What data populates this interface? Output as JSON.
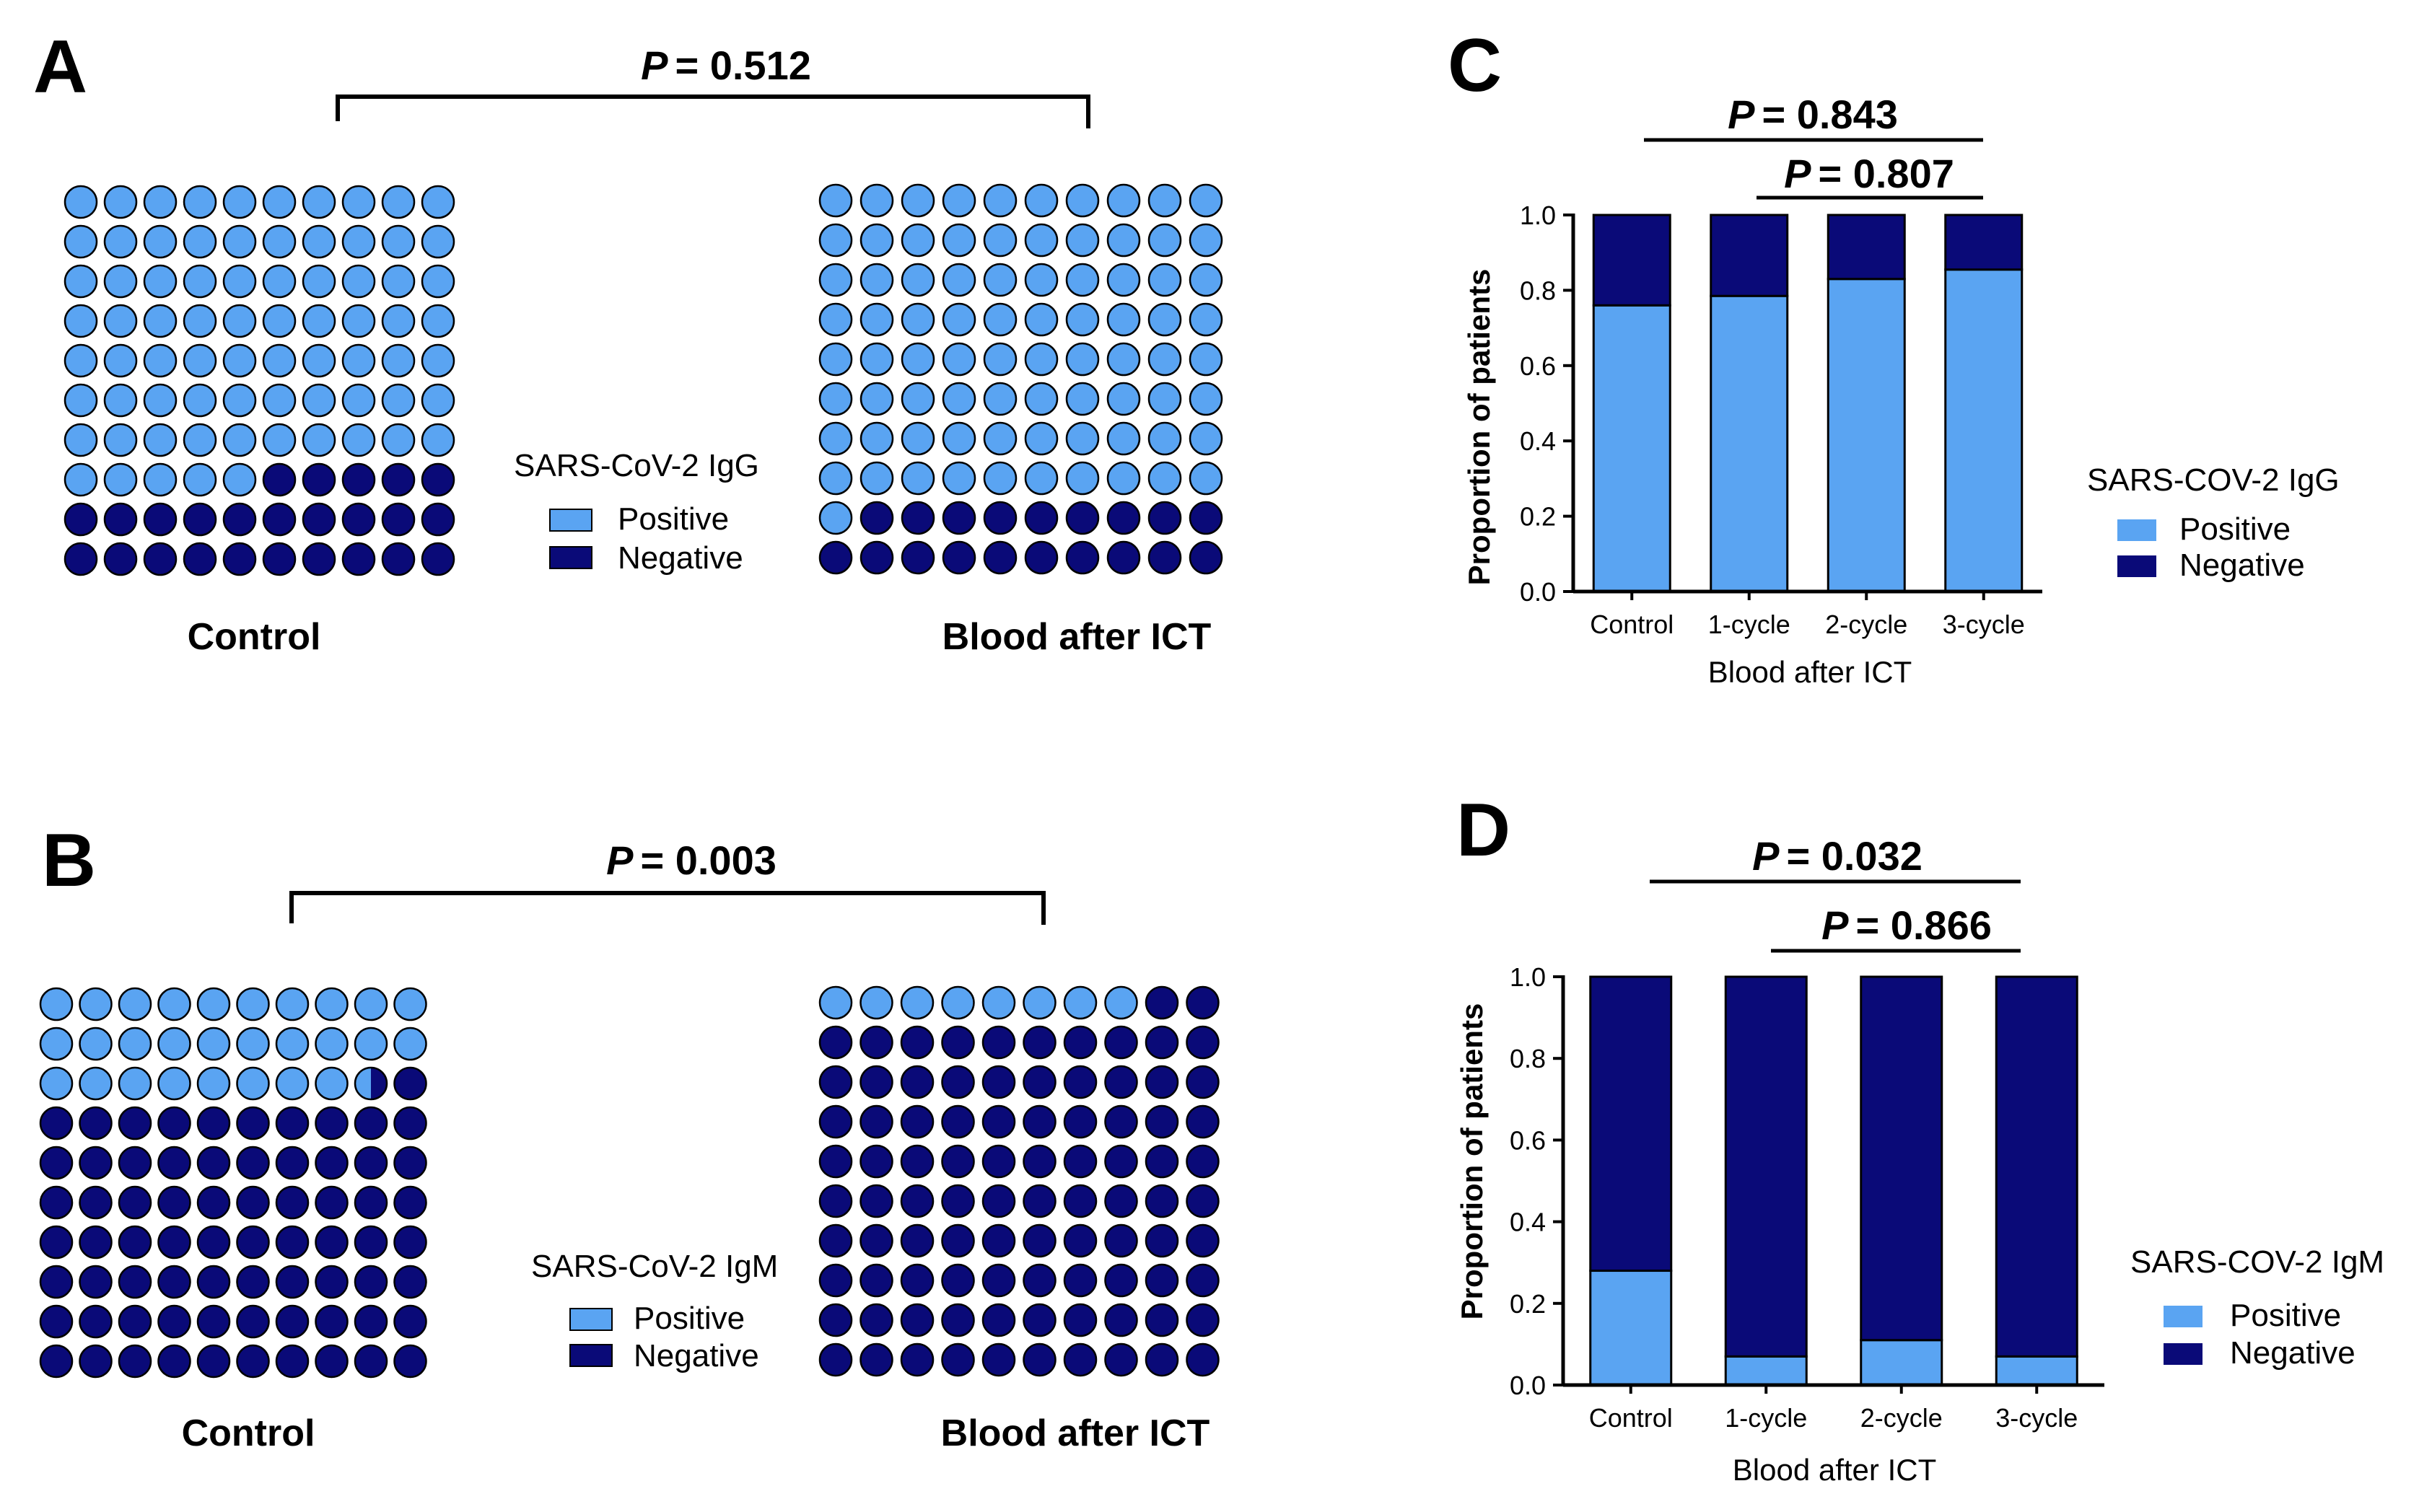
{
  "colors": {
    "positive": "#5aa4f2",
    "negative": "#0a0a78",
    "outline": "#000000"
  },
  "panels": {
    "A": {
      "label": "A",
      "p_value": "= 0.512",
      "p_symbol": "P",
      "legend": {
        "title": "SARS-CoV-2 IgG",
        "positive": "Positive",
        "negative": "Negative"
      },
      "groups": [
        {
          "name": "Control",
          "positive_count": 75,
          "negative_count": 25
        },
        {
          "name": "Blood after ICT",
          "positive_count": 81,
          "negative_count": 19
        }
      ]
    },
    "B": {
      "label": "B",
      "p_value": "= 0.003",
      "p_symbol": "P",
      "legend": {
        "title": "SARS-CoV-2 IgM",
        "positive": "Positive",
        "negative": "Negative"
      },
      "groups": [
        {
          "name": "Control",
          "positive_count": 28.5,
          "negative_count": 71.5
        },
        {
          "name": "Blood after ICT",
          "positive_count": 8,
          "negative_count": 92
        }
      ]
    },
    "C": {
      "label": "C",
      "comparisons": [
        {
          "p_symbol": "P",
          "p_value": "= 0.843",
          "from": "Control",
          "to": "3-cycle"
        },
        {
          "p_symbol": "P",
          "p_value": "= 0.807",
          "from": "1-cycle",
          "to": "3-cycle"
        }
      ],
      "legend": {
        "title": "SARS-COV-2 IgG",
        "positive": "Positive",
        "negative": "Negative"
      }
    },
    "D": {
      "label": "D",
      "comparisons": [
        {
          "p_symbol": "P",
          "p_value": "= 0.032",
          "from": "Control",
          "to": "3-cycle"
        },
        {
          "p_symbol": "P",
          "p_value": "= 0.866",
          "from": "1-cycle",
          "to": "3-cycle"
        }
      ],
      "legend": {
        "title": "SARS-COV-2 IgM",
        "positive": "Positive",
        "negative": "Negative"
      }
    }
  },
  "chart_data": [
    {
      "type": "waffle",
      "panel": "A",
      "title": "P = 0.512",
      "legend_title": "SARS-CoV-2 IgG",
      "categories": [
        "Control",
        "Blood after ICT"
      ],
      "series": [
        {
          "name": "Positive",
          "values": [
            75,
            81
          ]
        },
        {
          "name": "Negative",
          "values": [
            25,
            19
          ]
        }
      ]
    },
    {
      "type": "waffle",
      "panel": "B",
      "title": "P = 0.003",
      "legend_title": "SARS-CoV-2 IgM",
      "categories": [
        "Control",
        "Blood after ICT"
      ],
      "series": [
        {
          "name": "Positive",
          "values": [
            28.5,
            8
          ]
        },
        {
          "name": "Negative",
          "values": [
            71.5,
            92
          ]
        }
      ]
    },
    {
      "type": "bar",
      "stacked": true,
      "panel": "C",
      "categories": [
        "Control",
        "1-cycle",
        "2-cycle",
        "3-cycle"
      ],
      "series": [
        {
          "name": "Positive",
          "values": [
            0.76,
            0.785,
            0.83,
            0.855
          ]
        },
        {
          "name": "Negative",
          "values": [
            0.24,
            0.215,
            0.17,
            0.145
          ]
        }
      ],
      "xlabel": "Blood after ICT",
      "ylabel": "Proportion of patients",
      "ylim": [
        0,
        1.0
      ],
      "yticks": [
        "0.0",
        "0.2",
        "0.4",
        "0.6",
        "0.8",
        "1.0"
      ],
      "legend_title": "SARS-COV-2 IgG",
      "legend_position": "right"
    },
    {
      "type": "bar",
      "stacked": true,
      "panel": "D",
      "categories": [
        "Control",
        "1-cycle",
        "2-cycle",
        "3-cycle"
      ],
      "series": [
        {
          "name": "Positive",
          "values": [
            0.28,
            0.07,
            0.11,
            0.07
          ]
        },
        {
          "name": "Negative",
          "values": [
            0.72,
            0.93,
            0.89,
            0.93
          ]
        }
      ],
      "xlabel": "Blood after ICT",
      "ylabel": "Proportion of patients",
      "ylim": [
        0,
        1.0
      ],
      "yticks": [
        "0.0",
        "0.2",
        "0.4",
        "0.6",
        "0.8",
        "1.0"
      ],
      "legend_title": "SARS-COV-2 IgM",
      "legend_position": "right"
    }
  ]
}
